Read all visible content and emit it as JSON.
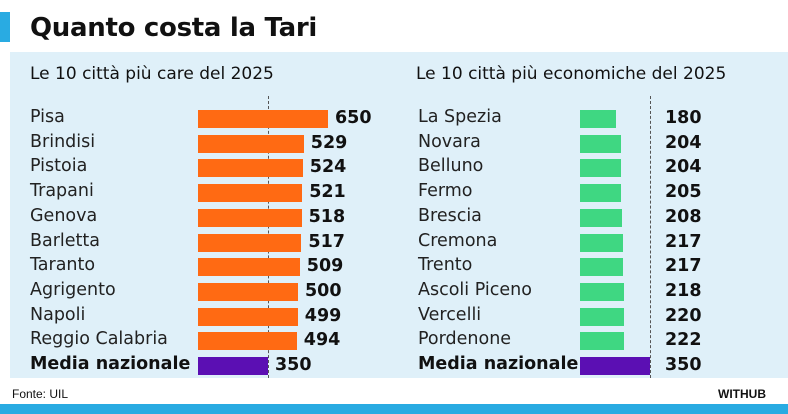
{
  "title": "Quanto costa la Tari",
  "colors": {
    "accent": "#29abe2",
    "panel": "#dff0f9",
    "expensive_bar": "#ff6a13",
    "cheap_bar": "#3fd782",
    "average_bar": "#5b0fb3"
  },
  "chart_data": [
    {
      "type": "bar",
      "orientation": "horizontal",
      "title": "Le 10 città più care del 2025",
      "categories": [
        "Pisa",
        "Brindisi",
        "Pistoia",
        "Trapani",
        "Genova",
        "Barletta",
        "Taranto",
        "Agrigento",
        "Napoli",
        "Reggio Calabria",
        "Media nazionale"
      ],
      "values": [
        650,
        529,
        524,
        521,
        518,
        517,
        509,
        500,
        499,
        494,
        350
      ],
      "reference_line": 350,
      "grid": false
    },
    {
      "type": "bar",
      "orientation": "horizontal",
      "title": "Le 10 città più economiche del 2025",
      "categories": [
        "La Spezia",
        "Novara",
        "Belluno",
        "Fermo",
        "Brescia",
        "Cremona",
        "Trento",
        "Ascoli Piceno",
        "Vercelli",
        "Pordenone",
        "Media nazionale"
      ],
      "values": [
        180,
        204,
        204,
        205,
        208,
        217,
        217,
        218,
        220,
        222,
        350
      ],
      "reference_line": 350,
      "grid": false
    }
  ],
  "footer": {
    "source": "Fonte: UIL",
    "brand": "WITHUB"
  }
}
